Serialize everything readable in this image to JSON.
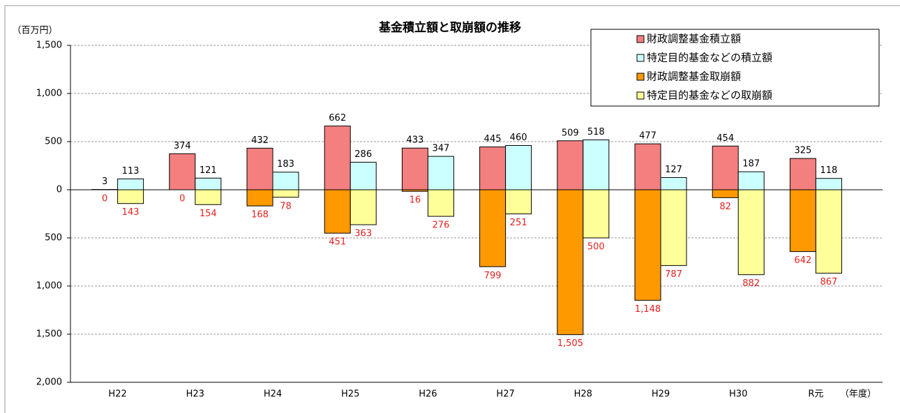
{
  "chart_data": {
    "type": "bar",
    "title": "基金積立額と取崩額の推移",
    "y_label": "（百万円）",
    "x_label": "（年度）",
    "categories": [
      "H22",
      "H23",
      "H24",
      "H25",
      "H26",
      "H27",
      "H28",
      "H29",
      "H30",
      "R元"
    ],
    "series": [
      {
        "name": "財政調整基金積立額",
        "color": "#f47f7f",
        "values": [
          3,
          374,
          432,
          662,
          433,
          445,
          509,
          477,
          454,
          325
        ]
      },
      {
        "name": "特定目的基金などの積立額",
        "color": "#ccffff",
        "values": [
          113,
          121,
          183,
          286,
          347,
          460,
          518,
          127,
          187,
          118
        ]
      },
      {
        "name": "財政調整基金取崩額",
        "color": "#ff9900",
        "values": [
          0,
          0,
          -168,
          -451,
          -16,
          -799,
          -1505,
          -1148,
          -82,
          -642
        ],
        "value_labels": [
          "0",
          "0",
          "168",
          "451",
          "16",
          "799",
          "1,505",
          "1,148",
          "82",
          "642"
        ]
      },
      {
        "name": "特定目的基金などの取崩額",
        "color": "#ffff99",
        "values": [
          -143,
          -154,
          -78,
          -363,
          -276,
          -251,
          -500,
          -787,
          -882,
          -867
        ],
        "value_labels": [
          "143",
          "154",
          "78",
          "363",
          "276",
          "251",
          "500",
          "787",
          "882",
          "867"
        ]
      }
    ],
    "ylim": [
      -2000,
      1500
    ],
    "yticks": [
      {
        "value": 1500,
        "label": "1,500"
      },
      {
        "value": 1000,
        "label": "1,000"
      },
      {
        "value": 500,
        "label": "500"
      },
      0,
      {
        "value": -500,
        "label": "500"
      },
      {
        "value": -1000,
        "label": "1,000"
      },
      {
        "value": -1500,
        "label": "1,500"
      },
      {
        "value": -2000,
        "label": "2,000"
      }
    ],
    "grid": true,
    "legend": "top-right"
  }
}
